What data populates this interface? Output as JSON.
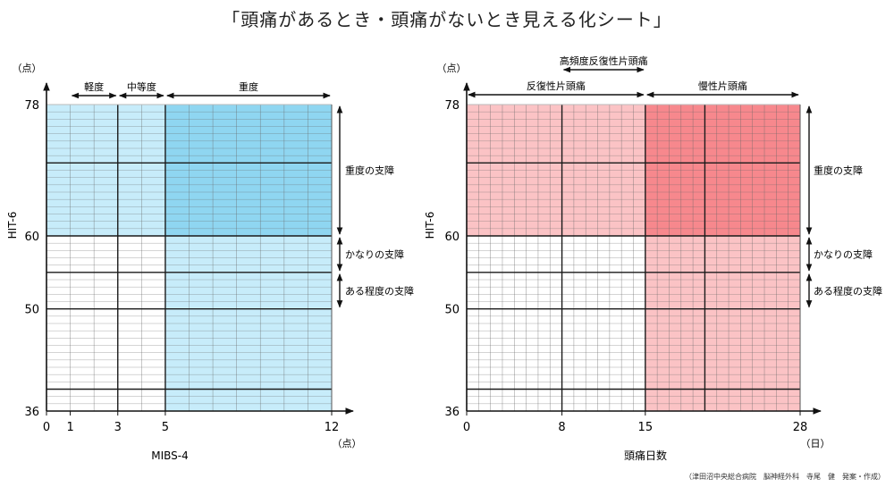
{
  "sheet": {
    "title": "「頭痛があるとき・頭痛がないとき見える化シート」",
    "credit": "（津田沼中央総合病院　脳神経外科　寺尾　健　発案・作成）"
  },
  "colors": {
    "blue_light": "#c7ecfa",
    "blue_dark": "#8fd6f1",
    "red_light": "#fbc3c5",
    "red_dark": "#f7888d",
    "grid_line": "#666666",
    "heavy_line": "#1a1a1a"
  },
  "chart_data": [
    {
      "type": "heatmap",
      "title": "",
      "xlabel": "MIBS-4",
      "ylabel": "HIT-6",
      "x_unit": "（点）",
      "y_unit": "（点）",
      "xlim": [
        0,
        12
      ],
      "ylim": [
        36,
        78
      ],
      "x_ticks": [
        0,
        1,
        3,
        5,
        12
      ],
      "y_ticks": [
        36,
        50,
        60,
        78
      ],
      "x_major_lines": [
        3,
        5
      ],
      "y_major_lines": [
        39,
        50,
        55,
        60,
        70
      ],
      "x_minor_lines": [
        1,
        2,
        4,
        6,
        7,
        8,
        9,
        10,
        11
      ],
      "y_minor_step": 1,
      "regions": [
        {
          "x": [
            0,
            5
          ],
          "y": [
            60,
            78
          ],
          "color": "blue_light"
        },
        {
          "x": [
            5,
            12
          ],
          "y": [
            36,
            60
          ],
          "color": "blue_light"
        },
        {
          "x": [
            5,
            12
          ],
          "y": [
            60,
            78
          ],
          "color": "blue_dark"
        }
      ],
      "x_ranges": [
        {
          "label": "軽度",
          "from": 1,
          "to": 3
        },
        {
          "label": "中等度",
          "from": 3,
          "to": 5
        },
        {
          "label": "重度",
          "from": 5,
          "to": 12
        }
      ],
      "y_ranges": [
        {
          "label": "重度の支障",
          "from": 60,
          "to": 78
        },
        {
          "label": "かなりの支障",
          "from": 55,
          "to": 60
        },
        {
          "label": "ある程度の支障",
          "from": 50,
          "to": 55
        }
      ]
    },
    {
      "type": "heatmap",
      "title": "",
      "xlabel": "頭痛日数",
      "ylabel": "HIT-6",
      "x_unit": "（日）",
      "y_unit": "（点）",
      "xlim": [
        0,
        28
      ],
      "ylim": [
        36,
        78
      ],
      "x_ticks": [
        0,
        8,
        15,
        28
      ],
      "y_ticks": [
        36,
        50,
        60,
        78
      ],
      "x_major_lines": [
        8,
        15,
        20
      ],
      "y_major_lines": [
        39,
        50,
        55,
        60,
        70
      ],
      "x_minor_step": 1,
      "y_minor_step": 1,
      "regions": [
        {
          "x": [
            0,
            15
          ],
          "y": [
            60,
            78
          ],
          "color": "red_light"
        },
        {
          "x": [
            15,
            28
          ],
          "y": [
            36,
            60
          ],
          "color": "red_light"
        },
        {
          "x": [
            15,
            28
          ],
          "y": [
            60,
            78
          ],
          "color": "red_dark"
        }
      ],
      "x_ranges": [
        {
          "label": "高頻度反復性片頭痛",
          "from": 8,
          "to": 15,
          "row": 0
        },
        {
          "label": "反復性片頭痛",
          "from": 0,
          "to": 15,
          "row": 1
        },
        {
          "label": "慢性片頭痛",
          "from": 15,
          "to": 28,
          "row": 1
        }
      ],
      "y_ranges": [
        {
          "label": "重度の支障",
          "from": 60,
          "to": 78
        },
        {
          "label": "かなりの支障",
          "from": 55,
          "to": 60
        },
        {
          "label": "ある程度の支障",
          "from": 50,
          "to": 55
        }
      ]
    }
  ]
}
